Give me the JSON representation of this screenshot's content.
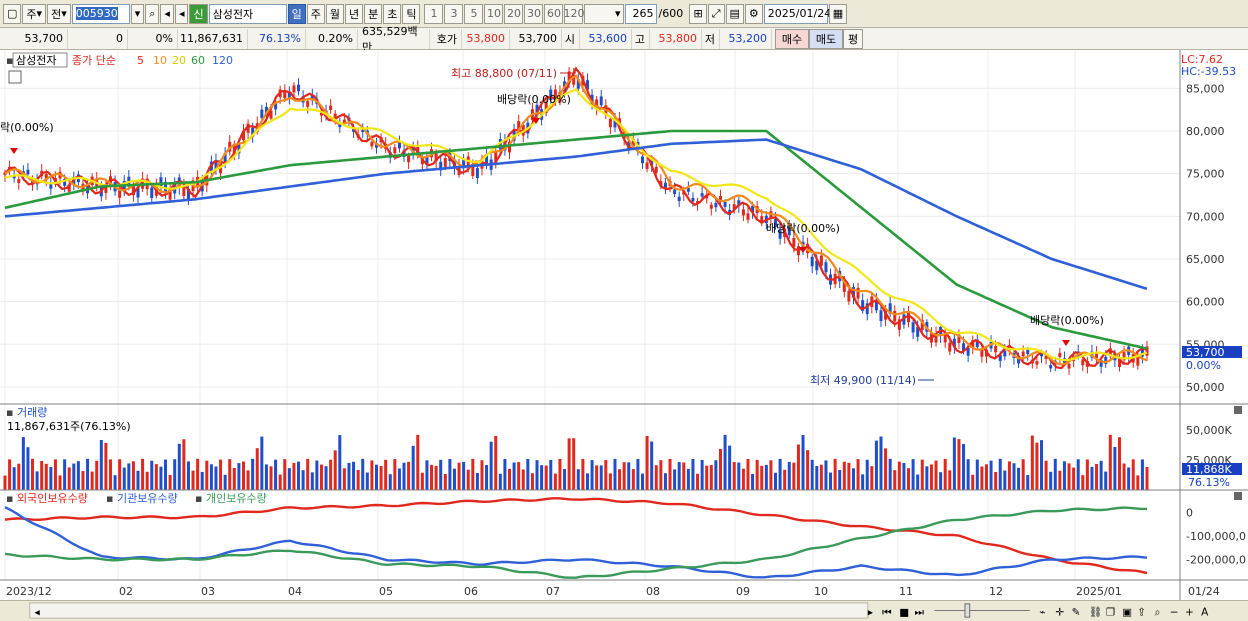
{
  "toolbar": {
    "market": "주",
    "range": "전",
    "code": "005930",
    "badge": "신",
    "name": "삼성전자",
    "periods": [
      "일",
      "주",
      "월",
      "년",
      "분",
      "초",
      "틱"
    ],
    "active_period": "일",
    "intervals": [
      "1",
      "3",
      "5",
      "10",
      "20",
      "30",
      "60",
      "120"
    ],
    "count": "265",
    "count_max": "/600",
    "date": "2025/01/24"
  },
  "quote": {
    "price": "53,700",
    "change": "0",
    "change_pct": "0%",
    "volume": "11,867,631",
    "volume_ratio": "76.13%",
    "turnover_pct": "0.20%",
    "amount": "635,529백만",
    "hoga_label": "호가",
    "hoga": "53,800",
    "hoga2": "53,700",
    "open_label": "시",
    "open": "53,600",
    "high_label": "고",
    "high": "53,800",
    "low_label": "저",
    "low": "53,200",
    "buy": "매수",
    "sell": "매도",
    "eval": "평"
  },
  "price_panel": {
    "stock_label": "삼성전자",
    "ma_label": "종가 단순",
    "ma_periods": [
      "5",
      "10",
      "20",
      "60",
      "120"
    ],
    "lc": "LC:7.62",
    "hc": "HC:-39.53",
    "current": "53,700",
    "current_pct": "0.00%",
    "high_note": "최고 88,800 (07/11)",
    "low_note": "최저 49,900 (11/14)",
    "dividends": [
      "락(0.00%)",
      "배당락(0.00%)",
      "배당락(0.00%)",
      "배당락(0.00%)"
    ]
  },
  "volume_panel": {
    "title": "거래량",
    "info": "11,867,631주(76.13%)",
    "axis": [
      "50,000K",
      "25,000K"
    ],
    "current": "11,868K",
    "current_pct": "76.13%"
  },
  "holdings_panel": {
    "series": [
      "외국인보유수량",
      "기관보유수량",
      "개인보유수량"
    ],
    "axis": [
      "0",
      "-100,000,0",
      "-200,000,0"
    ]
  },
  "x_labels": [
    "2023/12",
    "02",
    "03",
    "04",
    "05",
    "06",
    "07",
    "08",
    "09",
    "10",
    "11",
    "12",
    "2025/01",
    "01/24"
  ],
  "colors": {
    "up": "#e0281d",
    "down": "#1f4ec9",
    "ma5": "#e0281d",
    "ma10": "#f08a1c",
    "ma20": "#f2e614",
    "ma60": "#2a9a3c",
    "ma120": "#2f60d8",
    "foreign": "#e0281d",
    "institution": "#2f60d8",
    "individual": "#3a9a5a"
  },
  "chart_data": [
    {
      "type": "line",
      "x": [
        "2023/12",
        "02",
        "03",
        "04",
        "05",
        "06",
        "07",
        "08",
        "09",
        "10",
        "11",
        "12",
        "2025/01"
      ],
      "yticks": [
        "85,000",
        "80,000",
        "75,000",
        "70,000",
        "65,000",
        "60,000",
        "55,000",
        "50,000"
      ],
      "ylim": [
        48000,
        89500
      ],
      "series": [
        {
          "name": "5",
          "values": [
            75000,
            73500,
            73200,
            85000,
            78000,
            75500,
            86500,
            73000,
            70000,
            60000,
            55000,
            53000,
            53700
          ]
        },
        {
          "name": "10",
          "values": [
            75000,
            73800,
            73300,
            84500,
            78500,
            76000,
            86000,
            74000,
            71000,
            61000,
            55500,
            53200,
            53800
          ]
        },
        {
          "name": "20",
          "values": [
            74500,
            74000,
            73500,
            83000,
            79500,
            76500,
            85000,
            75000,
            72500,
            63000,
            56500,
            53500,
            53800
          ]
        },
        {
          "name": "60",
          "values": [
            71000,
            73500,
            74000,
            76000,
            77000,
            78000,
            79000,
            80000,
            80000,
            71000,
            62000,
            57000,
            54500
          ]
        },
        {
          "name": "120",
          "values": [
            70000,
            71000,
            72000,
            73500,
            75000,
            76000,
            77000,
            78500,
            79000,
            75500,
            70000,
            65000,
            61500
          ]
        }
      ]
    },
    {
      "type": "bar",
      "title": "거래량",
      "ylim": [
        0,
        60000
      ],
      "yticks": [
        "50,000K",
        "25,000K"
      ]
    },
    {
      "type": "line",
      "x": [
        "2023/12",
        "02",
        "03",
        "04",
        "05",
        "06",
        "07",
        "08",
        "09",
        "10",
        "11",
        "12",
        "2025/01"
      ],
      "yticks": [
        "0",
        "-100,000,0",
        "-200,000,0"
      ],
      "series": [
        {
          "name": "외국인보유수량",
          "values": [
            -30000,
            -20000,
            -20000,
            20000,
            30000,
            50000,
            60000,
            40000,
            -10000,
            -60000,
            -100000,
            -200000,
            -260000
          ]
        },
        {
          "name": "기관보유수량",
          "values": [
            20000,
            -190000,
            -200000,
            -120000,
            -200000,
            -220000,
            -200000,
            -230000,
            -280000,
            -230000,
            -270000,
            -200000,
            -190000
          ]
        },
        {
          "name": "개인보유수량",
          "values": [
            -180000,
            -200000,
            -200000,
            -160000,
            -220000,
            -230000,
            -280000,
            -240000,
            -200000,
            -110000,
            -30000,
            10000,
            20000
          ]
        }
      ]
    }
  ]
}
